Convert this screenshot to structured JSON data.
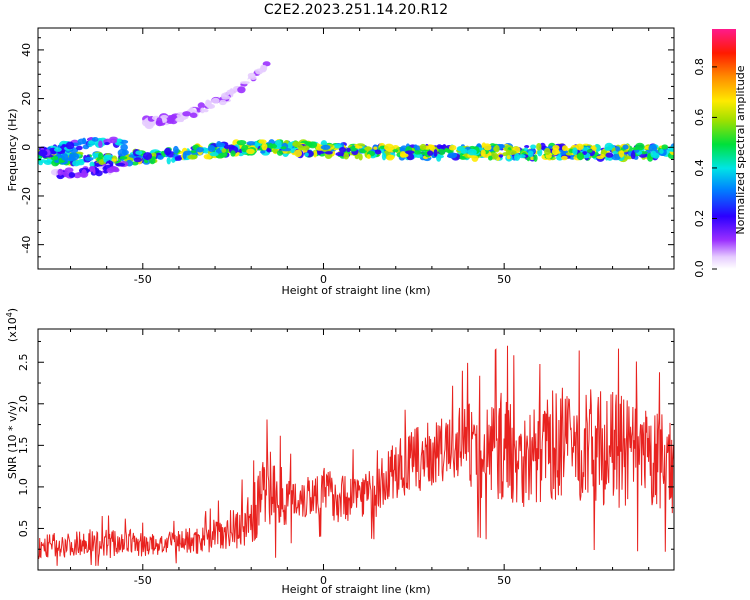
{
  "figure": {
    "title": "C2E2.2023.251.14.20.R12"
  },
  "chart_data": [
    {
      "type": "heatmap",
      "xlabel": "Height of straight line (km)",
      "ylabel": "Frequency (Hz)",
      "xlim": [
        -79,
        97
      ],
      "ylim": [
        -50,
        49
      ],
      "xticks": [
        -50,
        0,
        50
      ],
      "yticks": [
        -40,
        -20,
        0,
        20,
        40
      ],
      "tick_labels_x": [
        "-50",
        "0",
        "50"
      ],
      "tick_labels_y": [
        "-40",
        "-20",
        "0",
        "20",
        "40"
      ],
      "colorbar": {
        "label": "Normalized spectral amplitude",
        "range": [
          0,
          0.95
        ],
        "ticks": [
          0.0,
          0.2,
          0.4,
          0.6,
          0.8
        ],
        "tick_labels": [
          "0.0",
          "0.2",
          "0.4",
          "0.6",
          "0.8"
        ],
        "colormap": "rainbow (white-purple-blue-cyan-green-yellow-orange-red-magenta)"
      },
      "features": [
        {
          "name": "main band",
          "x": [
            -79,
            -60,
            -40,
            -20,
            -12,
            0,
            20,
            40,
            60,
            80,
            97
          ],
          "freq": [
            -4,
            -5,
            -3,
            0,
            0,
            -1,
            -2,
            -2,
            -2,
            -2,
            -2
          ],
          "peak_amplitude": 0.8
        },
        {
          "name": "upper branch",
          "x": [
            -78,
            -70,
            -60,
            -55
          ],
          "freq": [
            -2,
            0,
            3,
            1
          ],
          "peak_amplitude": 0.5
        },
        {
          "name": "lower branch",
          "x": [
            -75,
            -65,
            -55
          ],
          "freq": [
            -11,
            -10,
            -8
          ],
          "peak_amplitude": 0.3
        },
        {
          "name": "weak rising trace",
          "x": [
            -50,
            -40,
            -30,
            -25,
            -20,
            -15
          ],
          "freq": [
            10,
            12,
            18,
            22,
            28,
            34
          ],
          "peak_amplitude": 0.15
        }
      ]
    },
    {
      "type": "line",
      "xlabel": "Height of straight line (km)",
      "ylabel": "SNR (10 * v/v)",
      "scale_label": "(x10",
      "scale_exponent": "4",
      "xlim": [
        -79,
        97
      ],
      "ylim": [
        0.0,
        2.9
      ],
      "xticks": [
        -50,
        0,
        50
      ],
      "yticks": [
        0.5,
        1.0,
        1.5,
        2.0,
        2.5
      ],
      "tick_labels_x": [
        "-50",
        "0",
        "50"
      ],
      "tick_labels_y": [
        "0.5",
        "1.0",
        "1.5",
        "2.0",
        "2.5"
      ],
      "color": "#e8221f",
      "series": [
        {
          "x": [
            -79,
            -75,
            -70,
            -65,
            -60,
            -55,
            -50,
            -45,
            -40,
            -35,
            -32,
            -30,
            -25,
            -20,
            -17,
            -15,
            -12,
            -10,
            -5,
            0,
            5,
            10,
            15,
            17,
            20,
            25,
            30,
            35,
            40,
            42,
            45,
            50,
            55,
            60,
            65,
            70,
            75,
            80,
            85,
            90,
            95,
            97
          ],
          "y": [
            0.25,
            0.3,
            0.3,
            0.35,
            0.3,
            0.35,
            0.3,
            0.3,
            0.35,
            0.35,
            0.5,
            0.45,
            0.5,
            0.6,
            0.9,
            1.0,
            0.9,
            0.85,
            0.9,
            0.95,
            0.85,
            0.95,
            0.9,
            1.1,
            1.2,
            1.3,
            1.4,
            1.45,
            1.6,
            1.3,
            1.45,
            1.5,
            1.35,
            1.4,
            1.55,
            1.45,
            1.5,
            1.45,
            1.4,
            1.3,
            1.3,
            1.25
          ],
          "spread": [
            0.15,
            0.15,
            0.15,
            0.15,
            0.2,
            0.15,
            0.15,
            0.12,
            0.15,
            0.18,
            0.3,
            0.2,
            0.25,
            0.35,
            0.4,
            0.5,
            0.4,
            0.3,
            0.3,
            0.3,
            0.3,
            0.3,
            0.3,
            0.35,
            0.35,
            0.4,
            0.4,
            0.4,
            0.5,
            0.5,
            0.6,
            0.7,
            0.6,
            0.6,
            0.7,
            0.65,
            0.7,
            0.7,
            0.65,
            0.6,
            0.6,
            0.6
          ]
        }
      ]
    }
  ]
}
